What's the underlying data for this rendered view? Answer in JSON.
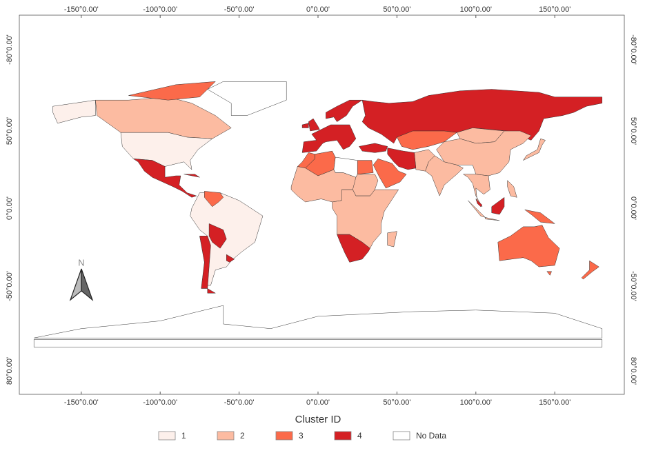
{
  "map": {
    "lon_labels": [
      {
        "value": -150,
        "label": "-150°0.00'"
      },
      {
        "value": -100,
        "label": "-100°0.00'"
      },
      {
        "value": -50,
        "label": "-50°0.00'"
      },
      {
        "value": 0,
        "label": "0°0.00'"
      },
      {
        "value": 50,
        "label": "50°0.00'"
      },
      {
        "value": 100,
        "label": "100°0.00'"
      },
      {
        "value": 150,
        "label": "150°0.00'"
      }
    ],
    "lat_labels": [
      "-80°0.00'",
      "50°0.00'",
      "0°0.00'",
      "-50°0.00'",
      "80°0.00'"
    ],
    "north_label": "N",
    "legend": {
      "title": "Cluster ID",
      "items": [
        {
          "label": "1",
          "color": "#fdf0eb"
        },
        {
          "label": "2",
          "color": "#fcbba1"
        },
        {
          "label": "3",
          "color": "#fb6a4a"
        },
        {
          "label": "4",
          "color": "#d42024"
        },
        {
          "label": "No Data",
          "color": "#ffffff"
        }
      ]
    }
  }
}
